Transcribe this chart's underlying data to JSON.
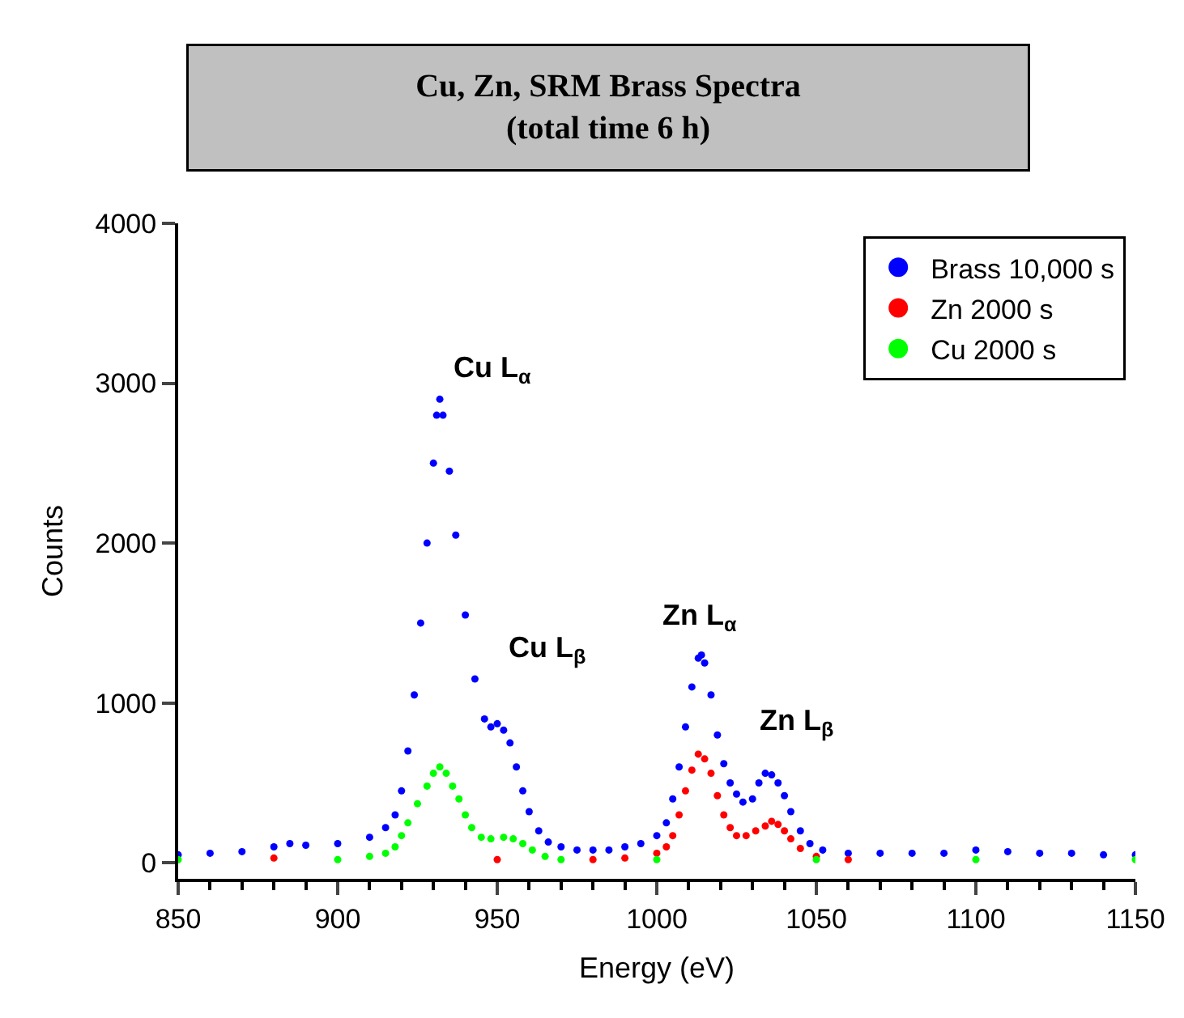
{
  "chart_data": {
    "type": "scatter",
    "title": "Cu, Zn, SRM Brass Spectra\n(total time 6 h)",
    "xlabel": "Energy (eV)",
    "ylabel": "Counts",
    "xlim": [
      850,
      1150
    ],
    "xticks": [
      850,
      900,
      950,
      1000,
      1050,
      1100,
      1150
    ],
    "ylim": [
      -100,
      4000
    ],
    "yticks": [
      0,
      1000,
      2000,
      3000,
      4000
    ],
    "legend": "top right",
    "marker": "circle",
    "series": [
      {
        "name": "Brass 10,000 s",
        "color": "#0000ff",
        "x": [
          850,
          860,
          870,
          880,
          885,
          890,
          900,
          910,
          915,
          918,
          920,
          922,
          924,
          926,
          928,
          930,
          931,
          932,
          933,
          935,
          937,
          940,
          943,
          946,
          948,
          950,
          952,
          954,
          956,
          958,
          960,
          963,
          966,
          970,
          975,
          980,
          985,
          990,
          995,
          1000,
          1003,
          1005,
          1007,
          1009,
          1011,
          1013,
          1014,
          1015,
          1017,
          1019,
          1021,
          1023,
          1025,
          1027,
          1030,
          1032,
          1034,
          1036,
          1038,
          1040,
          1042,
          1045,
          1048,
          1052,
          1060,
          1070,
          1080,
          1090,
          1100,
          1110,
          1120,
          1130,
          1140,
          1150
        ],
        "values": [
          50,
          60,
          70,
          100,
          120,
          110,
          120,
          160,
          220,
          300,
          450,
          700,
          1050,
          1500,
          2000,
          2500,
          2800,
          2900,
          2800,
          2450,
          2050,
          1550,
          1150,
          900,
          850,
          870,
          830,
          750,
          600,
          450,
          320,
          200,
          130,
          100,
          80,
          80,
          80,
          100,
          120,
          170,
          250,
          400,
          600,
          850,
          1100,
          1280,
          1300,
          1250,
          1050,
          800,
          620,
          500,
          430,
          380,
          400,
          500,
          560,
          550,
          500,
          420,
          320,
          200,
          120,
          80,
          60,
          60,
          60,
          60,
          80,
          70,
          60,
          60,
          50,
          50
        ]
      },
      {
        "name": "Zn 2000 s",
        "color": "#ff0000",
        "x": [
          880,
          950,
          980,
          990,
          1000,
          1003,
          1005,
          1007,
          1009,
          1011,
          1013,
          1015,
          1017,
          1019,
          1021,
          1023,
          1025,
          1028,
          1031,
          1034,
          1036,
          1038,
          1040,
          1042,
          1045,
          1050,
          1060
        ],
        "values": [
          30,
          20,
          20,
          30,
          60,
          100,
          170,
          300,
          450,
          580,
          680,
          650,
          560,
          420,
          300,
          220,
          170,
          170,
          200,
          230,
          260,
          240,
          200,
          150,
          90,
          40,
          20
        ]
      },
      {
        "name": "Cu 2000 s",
        "color": "#00ff00",
        "x": [
          850,
          900,
          910,
          915,
          918,
          920,
          922,
          925,
          928,
          930,
          932,
          934,
          936,
          938,
          940,
          942,
          945,
          948,
          952,
          955,
          958,
          961,
          965,
          970,
          1000,
          1050,
          1100,
          1150
        ],
        "values": [
          20,
          20,
          40,
          60,
          100,
          170,
          250,
          370,
          480,
          560,
          600,
          560,
          480,
          400,
          300,
          220,
          160,
          150,
          160,
          150,
          120,
          80,
          40,
          20,
          20,
          20,
          20,
          20
        ]
      }
    ],
    "annotations": [
      "Cu L$_{α}$",
      "Cu L$_{β}$",
      "Zn L$_{α}$",
      "Zn L$_{β}$"
    ]
  }
}
